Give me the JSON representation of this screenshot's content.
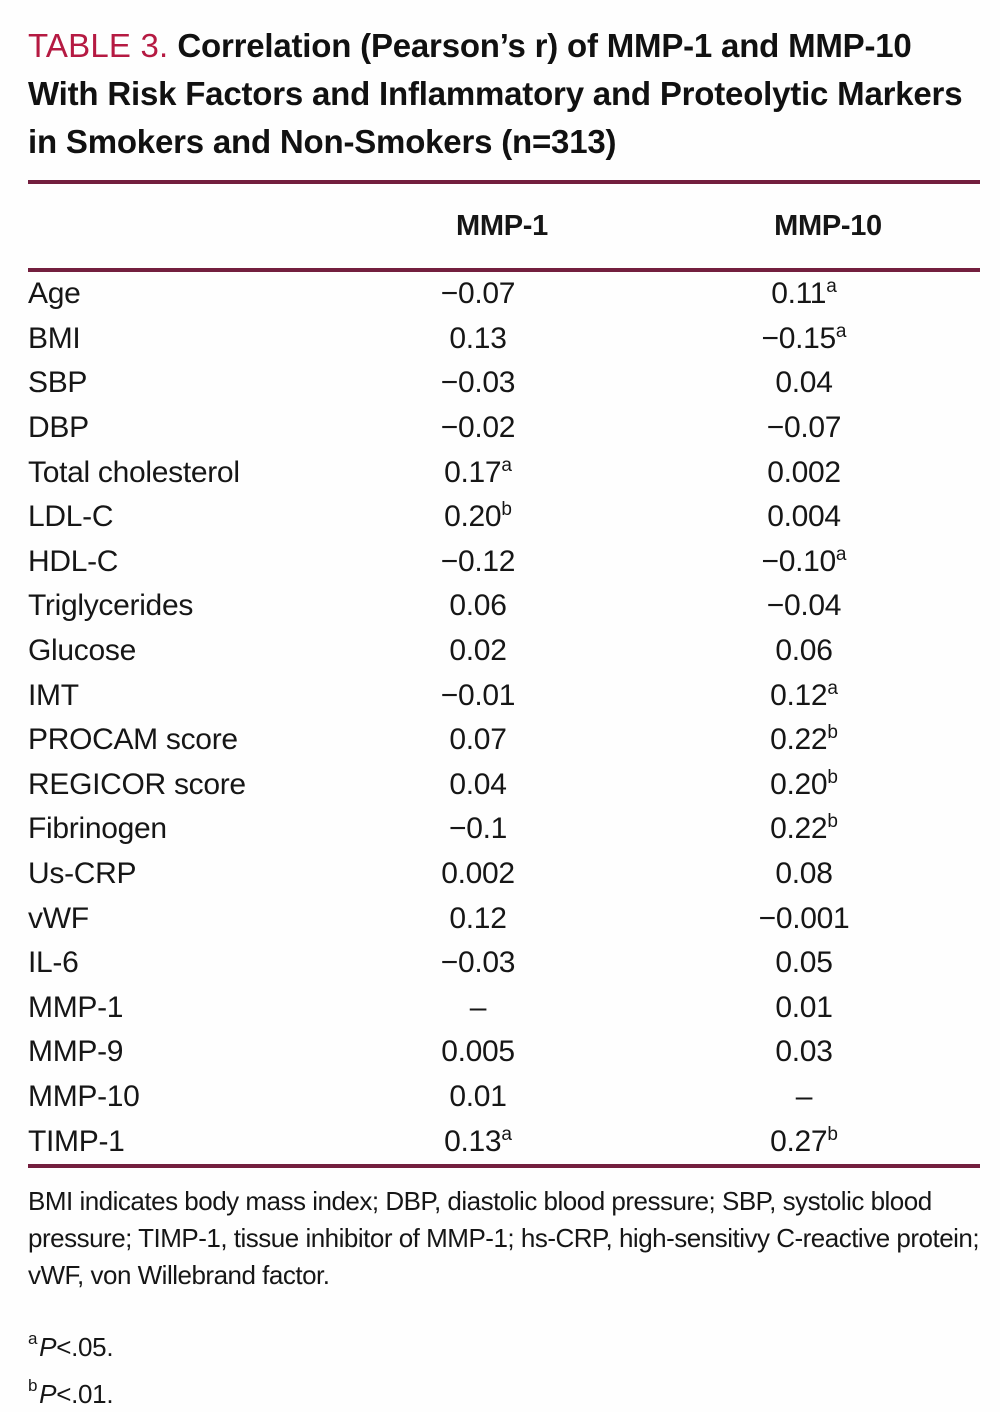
{
  "title": {
    "label": "TABLE 3.",
    "text": "Correlation (Pearson’s r) of MMP-1 and MMP-10 With Risk Factors and Inflammatory and Proteolytic Markers in Smokers and Non-Smokers (n=313)"
  },
  "colors": {
    "accent_crimson": "#b51a42",
    "rule_maroon": "#731f3e",
    "text": "#161616"
  },
  "table": {
    "headers": [
      "MMP-1",
      "MMP-10"
    ],
    "rows": [
      {
        "label": "Age",
        "mmp1": "−0.07",
        "mmp1_sup": "",
        "mmp10": "0.11",
        "mmp10_sup": "a"
      },
      {
        "label": "BMI",
        "mmp1": "0.13",
        "mmp1_sup": "",
        "mmp10": "−0.15",
        "mmp10_sup": "a"
      },
      {
        "label": "SBP",
        "mmp1": "−0.03",
        "mmp1_sup": "",
        "mmp10": "0.04",
        "mmp10_sup": ""
      },
      {
        "label": "DBP",
        "mmp1": "−0.02",
        "mmp1_sup": "",
        "mmp10": "−0.07",
        "mmp10_sup": ""
      },
      {
        "label": "Total cholesterol",
        "mmp1": "0.17",
        "mmp1_sup": "a",
        "mmp10": "0.002",
        "mmp10_sup": ""
      },
      {
        "label": "LDL-C",
        "mmp1": "0.20",
        "mmp1_sup": "b",
        "mmp10": "0.004",
        "mmp10_sup": ""
      },
      {
        "label": "HDL-C",
        "mmp1": "−0.12",
        "mmp1_sup": "",
        "mmp10": "−0.10",
        "mmp10_sup": "a"
      },
      {
        "label": "Triglycerides",
        "mmp1": "0.06",
        "mmp1_sup": "",
        "mmp10": "−0.04",
        "mmp10_sup": ""
      },
      {
        "label": "Glucose",
        "mmp1": "0.02",
        "mmp1_sup": "",
        "mmp10": "0.06",
        "mmp10_sup": ""
      },
      {
        "label": "IMT",
        "mmp1": "−0.01",
        "mmp1_sup": "",
        "mmp10": "0.12",
        "mmp10_sup": "a"
      },
      {
        "label": "PROCAM score",
        "mmp1": "0.07",
        "mmp1_sup": "",
        "mmp10": "0.22",
        "mmp10_sup": "b"
      },
      {
        "label": "REGICOR score",
        "mmp1": "0.04",
        "mmp1_sup": "",
        "mmp10": "0.20",
        "mmp10_sup": "b"
      },
      {
        "label": "Fibrinogen",
        "mmp1": "−0.1",
        "mmp1_sup": "",
        "mmp10": "0.22",
        "mmp10_sup": "b"
      },
      {
        "label": "Us-CRP",
        "mmp1": "0.002",
        "mmp1_sup": "",
        "mmp10": "0.08",
        "mmp10_sup": ""
      },
      {
        "label": "vWF",
        "mmp1": "0.12",
        "mmp1_sup": "",
        "mmp10": "−0.001",
        "mmp10_sup": ""
      },
      {
        "label": "IL-6",
        "mmp1": "−0.03",
        "mmp1_sup": "",
        "mmp10": "0.05",
        "mmp10_sup": ""
      },
      {
        "label": "MMP-1",
        "mmp1": "–",
        "mmp1_sup": "",
        "mmp10": "0.01",
        "mmp10_sup": ""
      },
      {
        "label": "MMP-9",
        "mmp1": "0.005",
        "mmp1_sup": "",
        "mmp10": "0.03",
        "mmp10_sup": ""
      },
      {
        "label": "MMP-10",
        "mmp1": "0.01",
        "mmp1_sup": "",
        "mmp10": "–",
        "mmp10_sup": ""
      },
      {
        "label": "TIMP-1",
        "mmp1": "0.13",
        "mmp1_sup": "a",
        "mmp10": "0.27",
        "mmp10_sup": "b"
      }
    ]
  },
  "footnotes": {
    "abbreviations": "BMI indicates body mass index; DBP, diastolic blood pressure; SBP, systolic blood pressure; TIMP-1, tissue inhibitor of MMP-1; hs-CRP, high-sensitivy C-reactive protein; vWF, von Willebrand factor.",
    "significance": [
      {
        "marker": "a",
        "symbol": "P",
        "condition": "<.05."
      },
      {
        "marker": "b",
        "symbol": "P",
        "condition": "<.01."
      }
    ]
  }
}
